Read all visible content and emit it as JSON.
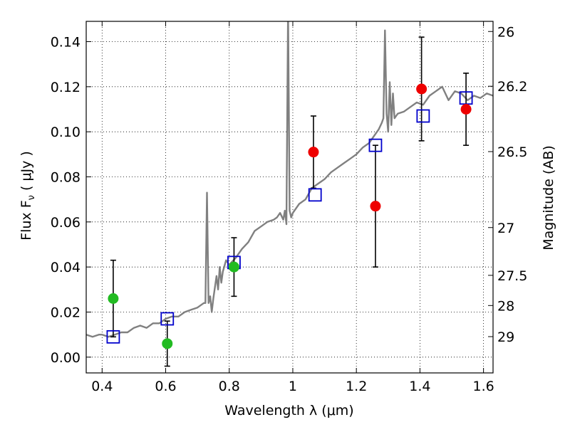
{
  "chart_data": {
    "type": "scatter",
    "xlabel": "Wavelength  λ (μm)",
    "ylabel": "Flux  F",
    "ylabel_sub": "ν",
    "ylabel_unit": "  ( μJy )",
    "y2label": "Magnitude (AB)",
    "xlim": [
      0.35,
      1.63
    ],
    "ylim": [
      -0.007,
      0.149
    ],
    "grid": true,
    "x_ticks": [
      {
        "value": 0.4,
        "label": "0.4"
      },
      {
        "value": 0.6,
        "label": "0.6"
      },
      {
        "value": 0.8,
        "label": "0.8"
      },
      {
        "value": 1.0,
        "label": "1"
      },
      {
        "value": 1.2,
        "label": "1.2"
      },
      {
        "value": 1.4,
        "label": "1.4"
      },
      {
        "value": 1.6,
        "label": "1.6"
      }
    ],
    "y_ticks": [
      {
        "value": 0.0,
        "label": "0.00"
      },
      {
        "value": 0.02,
        "label": "0.02"
      },
      {
        "value": 0.04,
        "label": "0.04"
      },
      {
        "value": 0.06,
        "label": "0.06"
      },
      {
        "value": 0.08,
        "label": "0.08"
      },
      {
        "value": 0.1,
        "label": "0.10"
      },
      {
        "value": 0.12,
        "label": "0.12"
      },
      {
        "value": 0.14,
        "label": "0.14"
      }
    ],
    "y2_ticks": [
      {
        "flux": 0.1445,
        "label": "26"
      },
      {
        "flux": 0.1202,
        "label": "26.2"
      },
      {
        "flux": 0.0912,
        "label": "26.5"
      },
      {
        "flux": 0.0575,
        "label": "27"
      },
      {
        "flux": 0.0363,
        "label": "27.5"
      },
      {
        "flux": 0.0229,
        "label": "28"
      },
      {
        "flux": 0.0091,
        "label": "29"
      }
    ],
    "series": [
      {
        "kind": "spectrum",
        "color": "#808080",
        "x": [
          0.35,
          0.37,
          0.39,
          0.4,
          0.42,
          0.44,
          0.46,
          0.48,
          0.5,
          0.52,
          0.54,
          0.56,
          0.58,
          0.6,
          0.62,
          0.64,
          0.66,
          0.68,
          0.7,
          0.72,
          0.725,
          0.73,
          0.735,
          0.74,
          0.745,
          0.75,
          0.76,
          0.765,
          0.77,
          0.775,
          0.78,
          0.79,
          0.8,
          0.82,
          0.84,
          0.86,
          0.88,
          0.9,
          0.92,
          0.94,
          0.95,
          0.96,
          0.97,
          0.975,
          0.98,
          0.985,
          0.99,
          0.995,
          1.0,
          1.02,
          1.04,
          1.06,
          1.08,
          1.1,
          1.12,
          1.14,
          1.16,
          1.18,
          1.2,
          1.22,
          1.24,
          1.26,
          1.27,
          1.28,
          1.285,
          1.29,
          1.295,
          1.3,
          1.305,
          1.31,
          1.315,
          1.32,
          1.325,
          1.33,
          1.35,
          1.37,
          1.39,
          1.41,
          1.43,
          1.45,
          1.47,
          1.49,
          1.51,
          1.53,
          1.55,
          1.57,
          1.59,
          1.61,
          1.63
        ],
        "y": [
          0.01,
          0.009,
          0.01,
          0.01,
          0.009,
          0.01,
          0.011,
          0.011,
          0.013,
          0.014,
          0.013,
          0.015,
          0.015,
          0.017,
          0.018,
          0.018,
          0.02,
          0.021,
          0.022,
          0.024,
          0.024,
          0.073,
          0.024,
          0.027,
          0.02,
          0.026,
          0.036,
          0.03,
          0.04,
          0.033,
          0.038,
          0.043,
          0.041,
          0.044,
          0.048,
          0.051,
          0.056,
          0.058,
          0.06,
          0.061,
          0.062,
          0.064,
          0.061,
          0.065,
          0.059,
          0.155,
          0.065,
          0.062,
          0.064,
          0.068,
          0.07,
          0.075,
          0.077,
          0.079,
          0.082,
          0.084,
          0.086,
          0.088,
          0.09,
          0.093,
          0.095,
          0.099,
          0.101,
          0.104,
          0.106,
          0.145,
          0.108,
          0.1,
          0.122,
          0.103,
          0.117,
          0.106,
          0.107,
          0.108,
          0.109,
          0.111,
          0.113,
          0.112,
          0.116,
          0.118,
          0.12,
          0.114,
          0.118,
          0.117,
          0.114,
          0.116,
          0.115,
          0.117,
          0.116
        ]
      },
      {
        "kind": "model-points",
        "color": "#0000cc",
        "x": [
          0.435,
          0.605,
          0.815,
          1.07,
          1.26,
          1.41,
          1.545
        ],
        "y": [
          0.009,
          0.017,
          0.042,
          0.072,
          0.094,
          0.107,
          0.115
        ]
      },
      {
        "kind": "observed-upper",
        "color": "#22bb22",
        "x": [
          0.435,
          0.605,
          0.815
        ],
        "y": [
          0.026,
          0.006,
          0.04
        ],
        "err": [
          0.017,
          0.01,
          0.013
        ]
      },
      {
        "kind": "observed",
        "color": "#ee0000",
        "x": [
          1.065,
          1.26,
          1.405,
          1.545
        ],
        "y": [
          0.091,
          0.067,
          0.119,
          0.11
        ],
        "err": [
          0.016,
          0.027,
          0.023,
          0.016
        ]
      }
    ]
  }
}
